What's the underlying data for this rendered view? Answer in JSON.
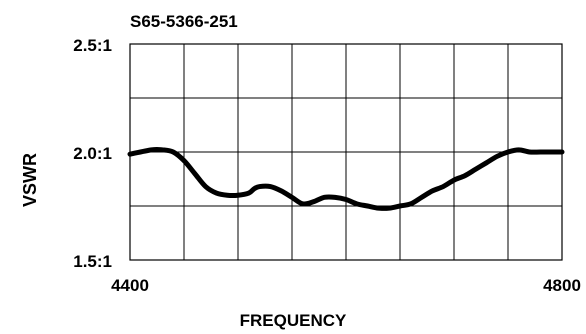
{
  "chart_data": {
    "type": "line",
    "title": "S65-5366-251",
    "xlabel": "FREQUENCY",
    "ylabel": "VSWR",
    "xlim": [
      4400,
      4800
    ],
    "ylim": [
      1.5,
      2.5
    ],
    "x_tick_labels": [
      {
        "value": 4400,
        "label": "4400"
      },
      {
        "value": 4800,
        "label": "4800"
      }
    ],
    "y_tick_labels": [
      {
        "value": 2.5,
        "label": "2.5:1"
      },
      {
        "value": 2.0,
        "label": "2.0:1"
      },
      {
        "value": 1.5,
        "label": "1.5:1"
      }
    ],
    "grid": true,
    "grid_x_divisions": 8,
    "grid_y_divisions": 4,
    "line_color": "#000000",
    "series": [
      {
        "x": [
          4400,
          4420,
          4430,
          4440,
          4450,
          4460,
          4470,
          4480,
          4490,
          4500,
          4510,
          4515,
          4520,
          4530,
          4540,
          4550,
          4560,
          4570,
          4580,
          4590,
          4600,
          4610,
          4620,
          4630,
          4640,
          4650,
          4660,
          4670,
          4680,
          4690,
          4700,
          4710,
          4720,
          4730,
          4740,
          4750,
          4760,
          4770,
          4780,
          4790,
          4800
        ],
        "y": [
          1.99,
          2.01,
          2.01,
          2.0,
          1.96,
          1.9,
          1.84,
          1.81,
          1.8,
          1.8,
          1.81,
          1.83,
          1.84,
          1.84,
          1.82,
          1.79,
          1.76,
          1.77,
          1.79,
          1.79,
          1.78,
          1.76,
          1.75,
          1.74,
          1.74,
          1.75,
          1.76,
          1.79,
          1.82,
          1.84,
          1.87,
          1.89,
          1.92,
          1.95,
          1.98,
          2.0,
          2.01,
          2.0,
          2.0,
          2.0,
          2.0
        ]
      }
    ]
  }
}
